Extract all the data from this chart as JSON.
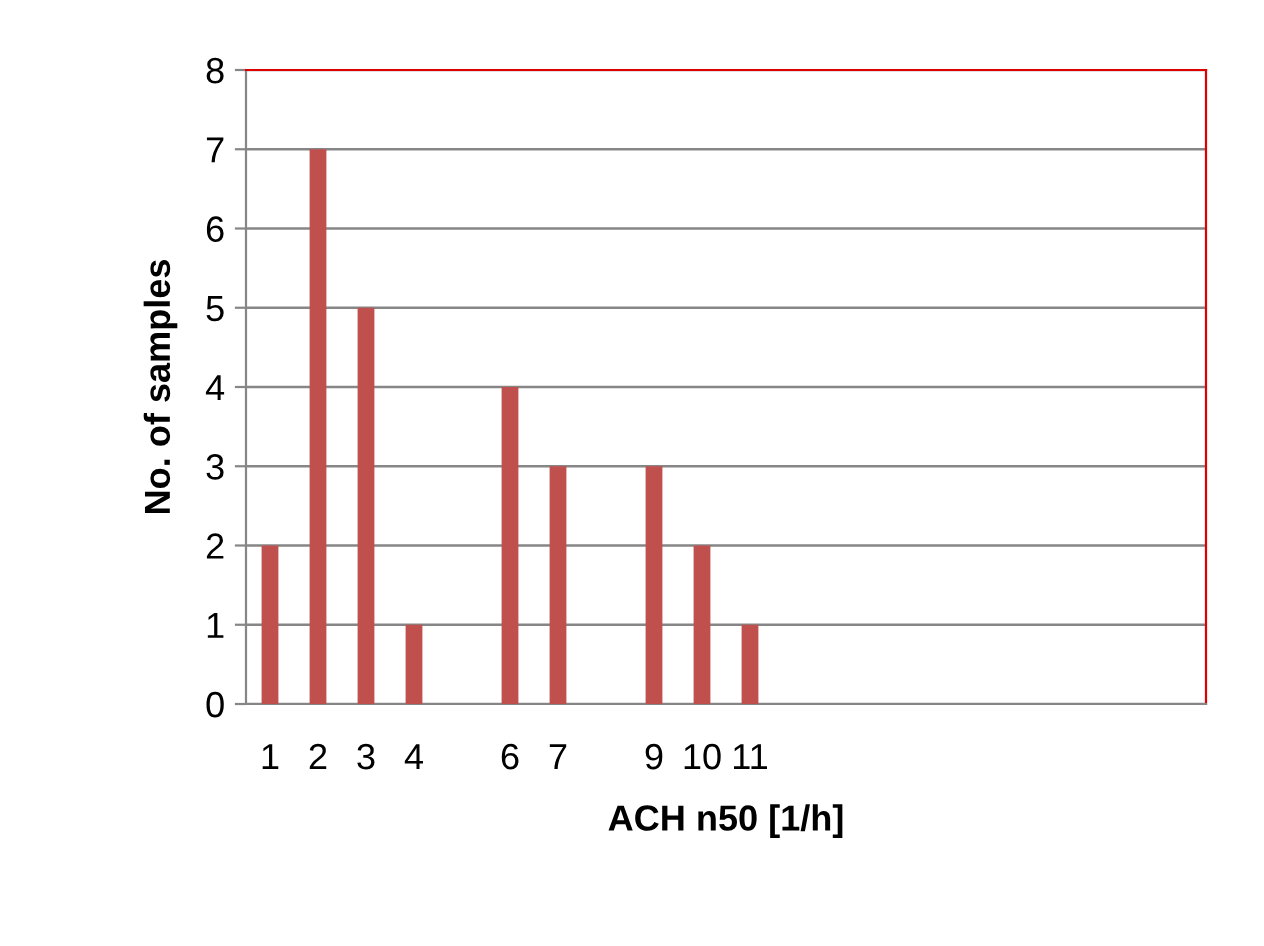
{
  "chart_data": {
    "type": "bar",
    "xlabel": "ACH n50 [1/h]",
    "ylabel": "No. of samples",
    "categories": [
      "1",
      "2",
      "3",
      "4",
      null,
      "6",
      "7",
      null,
      "9",
      "10",
      "11",
      null,
      null,
      null,
      null,
      null,
      null,
      null,
      null,
      null
    ],
    "values": [
      2,
      7,
      5,
      1,
      0,
      4,
      3,
      0,
      3,
      2,
      1,
      0,
      0,
      0,
      0,
      0,
      0,
      0,
      0,
      0
    ],
    "color": "#c0504d",
    "ylim": [
      0,
      8
    ],
    "yticks": [
      0,
      1,
      2,
      3,
      4,
      5,
      6,
      7,
      8
    ],
    "grid": "y",
    "legend": false
  }
}
